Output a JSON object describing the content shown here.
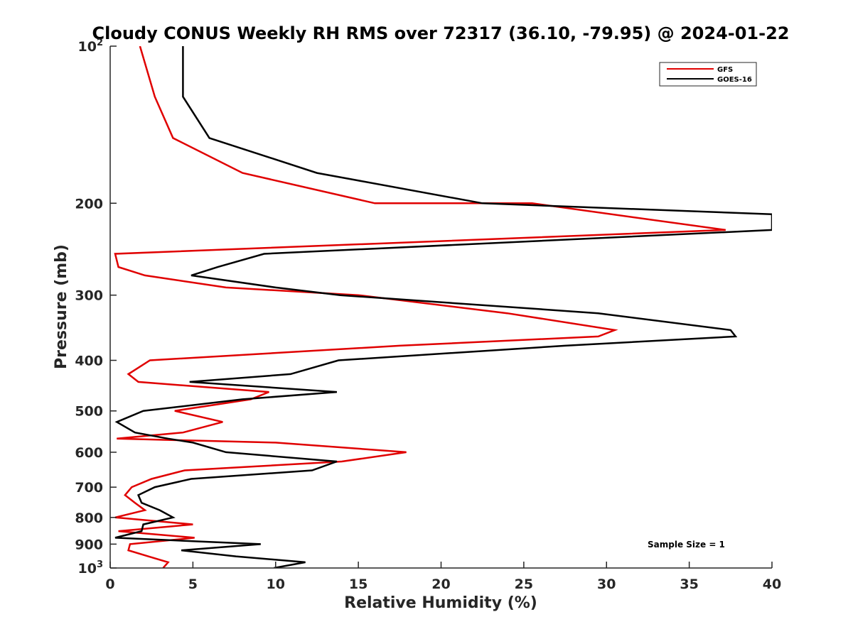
{
  "chart_data": {
    "type": "line",
    "title": "Cloudy CONUS Weekly RH RMS over 72317 (36.10, -79.95) @ 2024-01-22",
    "xlabel": "Relative Humidity (%)",
    "ylabel": "Pressure (mb)",
    "xlim": [
      0,
      40
    ],
    "ylim": [
      100,
      1000
    ],
    "y_scale": "log",
    "y_reversed": true,
    "grid": false,
    "legend_position": "top-right",
    "x_ticks": [
      "0",
      "5",
      "10",
      "15",
      "20",
      "25",
      "30",
      "35",
      "40"
    ],
    "y_ticks": [
      {
        "value": 100,
        "base": "10",
        "exp": "2"
      },
      {
        "value": 200,
        "base": "200",
        "exp": ""
      },
      {
        "value": 300,
        "base": "300",
        "exp": ""
      },
      {
        "value": 400,
        "base": "400",
        "exp": ""
      },
      {
        "value": 500,
        "base": "500",
        "exp": ""
      },
      {
        "value": 600,
        "base": "600",
        "exp": ""
      },
      {
        "value": 700,
        "base": "700",
        "exp": ""
      },
      {
        "value": 800,
        "base": "800",
        "exp": ""
      },
      {
        "value": 900,
        "base": "900",
        "exp": ""
      },
      {
        "value": 1000,
        "base": "10",
        "exp": "3"
      }
    ],
    "annotation": "Sample Size = 1",
    "series": [
      {
        "name": "GFS",
        "color": "#e00000",
        "points": [
          [
            1.8,
            100
          ],
          [
            2.7,
            125
          ],
          [
            3.8,
            150
          ],
          [
            8.0,
            175
          ],
          [
            16.0,
            200
          ],
          [
            25.5,
            200
          ],
          [
            37.2,
            225
          ],
          [
            0.3,
            250
          ],
          [
            0.5,
            265
          ],
          [
            2.1,
            275
          ],
          [
            7.0,
            290
          ],
          [
            15.0,
            300
          ],
          [
            24.0,
            325
          ],
          [
            30.5,
            350
          ],
          [
            29.5,
            360
          ],
          [
            17.5,
            375
          ],
          [
            2.4,
            400
          ],
          [
            1.1,
            425
          ],
          [
            1.7,
            440
          ],
          [
            9.6,
            460
          ],
          [
            8.5,
            475
          ],
          [
            3.9,
            500
          ],
          [
            6.8,
            525
          ],
          [
            4.4,
            550
          ],
          [
            0.4,
            565
          ],
          [
            10.0,
            575
          ],
          [
            17.9,
            600
          ],
          [
            14.0,
            625
          ],
          [
            4.5,
            650
          ],
          [
            2.5,
            675
          ],
          [
            1.3,
            700
          ],
          [
            0.9,
            725
          ],
          [
            1.5,
            750
          ],
          [
            2.1,
            775
          ],
          [
            0.3,
            800
          ],
          [
            5.0,
            825
          ],
          [
            0.5,
            850
          ],
          [
            5.1,
            875
          ],
          [
            1.2,
            900
          ],
          [
            1.1,
            925
          ],
          [
            2.3,
            950
          ],
          [
            3.5,
            975
          ],
          [
            3.2,
            1000
          ]
        ]
      },
      {
        "name": "GOES-16",
        "color": "#000000",
        "points": [
          [
            4.4,
            100
          ],
          [
            4.4,
            125
          ],
          [
            6.0,
            150
          ],
          [
            12.5,
            175
          ],
          [
            22.5,
            200
          ],
          [
            40.0,
            210
          ],
          [
            40.0,
            225
          ],
          [
            9.3,
            250
          ],
          [
            6.5,
            265
          ],
          [
            4.9,
            275
          ],
          [
            10.0,
            290
          ],
          [
            13.9,
            300
          ],
          [
            29.5,
            325
          ],
          [
            37.5,
            350
          ],
          [
            37.8,
            360
          ],
          [
            27.5,
            375
          ],
          [
            13.8,
            400
          ],
          [
            10.9,
            425
          ],
          [
            4.8,
            440
          ],
          [
            13.7,
            460
          ],
          [
            8.0,
            475
          ],
          [
            2.0,
            500
          ],
          [
            0.4,
            525
          ],
          [
            1.5,
            550
          ],
          [
            3.5,
            565
          ],
          [
            5.0,
            575
          ],
          [
            7.0,
            600
          ],
          [
            13.7,
            625
          ],
          [
            12.2,
            650
          ],
          [
            4.9,
            675
          ],
          [
            2.7,
            700
          ],
          [
            1.7,
            725
          ],
          [
            1.9,
            750
          ],
          [
            3.0,
            775
          ],
          [
            3.8,
            800
          ],
          [
            2.0,
            825
          ],
          [
            1.9,
            850
          ],
          [
            0.3,
            875
          ],
          [
            9.1,
            900
          ],
          [
            4.3,
            925
          ],
          [
            7.6,
            950
          ],
          [
            11.8,
            975
          ],
          [
            9.9,
            1000
          ]
        ]
      }
    ]
  }
}
